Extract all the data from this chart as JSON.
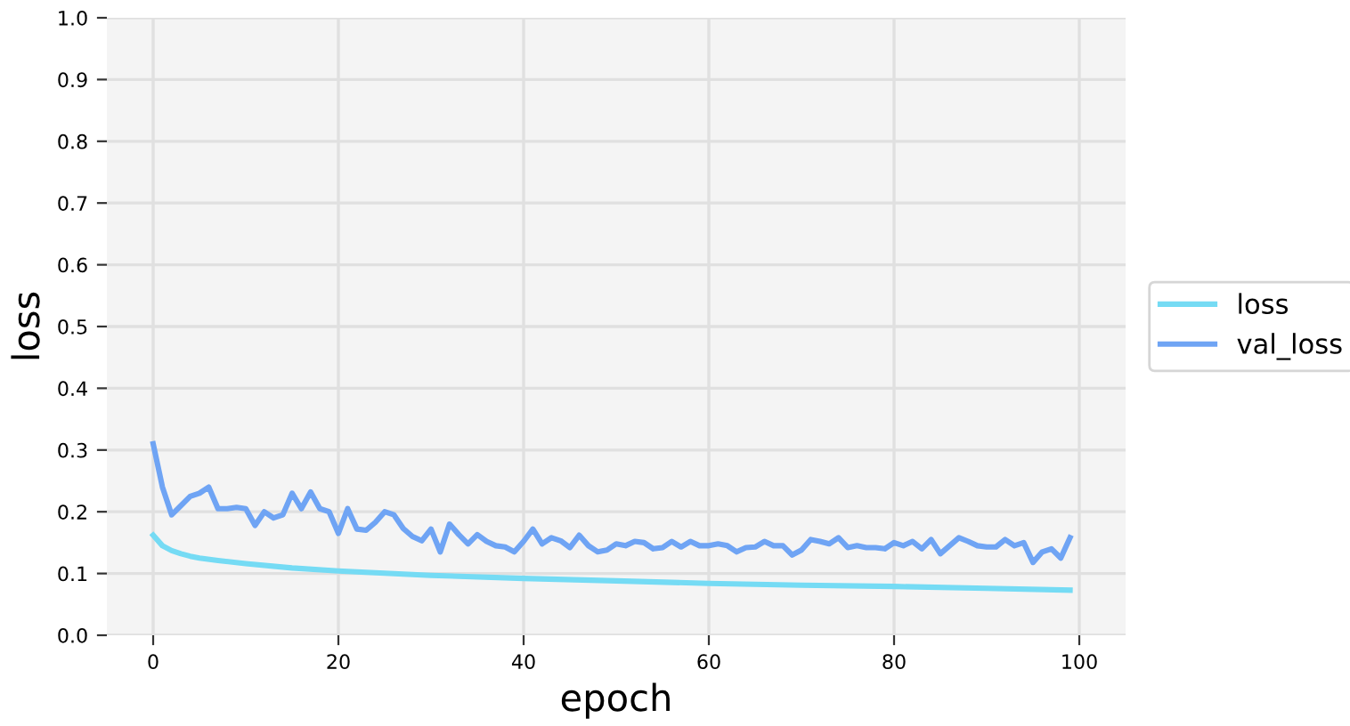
{
  "chart_data": {
    "type": "line",
    "xlabel": "epoch",
    "ylabel": "loss",
    "xlim": [
      -5,
      105
    ],
    "ylim": [
      0,
      1
    ],
    "xticks": [
      0,
      20,
      40,
      60,
      80,
      100
    ],
    "yticks": [
      {
        "value": 0,
        "label": "0.0"
      },
      0.1,
      0.2,
      0.3,
      0.4,
      0.5,
      0.6,
      0.7,
      0.8,
      0.9,
      {
        "value": 1,
        "label": "1.0"
      }
    ],
    "grid": true,
    "legend": "right",
    "line_style": "solid",
    "marker": "none",
    "series": [
      {
        "name": "loss",
        "color": "#75dbf4",
        "x": [
          0,
          1,
          2,
          3,
          4,
          5,
          7,
          10,
          15,
          20,
          30,
          40,
          50,
          60,
          70,
          80,
          90,
          99
        ],
        "values": [
          0.162,
          0.145,
          0.137,
          0.132,
          0.128,
          0.125,
          0.121,
          0.116,
          0.109,
          0.104,
          0.097,
          0.092,
          0.088,
          0.084,
          0.081,
          0.079,
          0.076,
          0.073
        ]
      },
      {
        "name": "val_loss",
        "color": "#6fa4f4",
        "x": [
          0,
          1,
          2,
          3,
          4,
          5,
          6,
          7,
          8,
          9,
          10,
          11,
          12,
          13,
          14,
          15,
          16,
          17,
          18,
          19,
          20,
          21,
          22,
          23,
          24,
          25,
          26,
          27,
          28,
          29,
          30,
          31,
          32,
          33,
          34,
          35,
          36,
          37,
          38,
          39,
          40,
          41,
          42,
          43,
          44,
          45,
          46,
          47,
          48,
          49,
          50,
          51,
          52,
          53,
          54,
          55,
          56,
          57,
          58,
          59,
          60,
          61,
          62,
          63,
          64,
          65,
          66,
          67,
          68,
          69,
          70,
          71,
          72,
          73,
          74,
          75,
          76,
          77,
          78,
          79,
          80,
          81,
          82,
          83,
          84,
          85,
          86,
          87,
          88,
          89,
          90,
          91,
          92,
          93,
          94,
          95,
          96,
          97,
          98,
          99
        ],
        "values": [
          0.31,
          0.24,
          0.195,
          0.21,
          0.225,
          0.23,
          0.24,
          0.205,
          0.205,
          0.207,
          0.205,
          0.178,
          0.2,
          0.19,
          0.195,
          0.23,
          0.205,
          0.232,
          0.205,
          0.2,
          0.165,
          0.205,
          0.172,
          0.17,
          0.183,
          0.2,
          0.195,
          0.173,
          0.16,
          0.153,
          0.172,
          0.135,
          0.18,
          0.163,
          0.148,
          0.163,
          0.152,
          0.145,
          0.143,
          0.135,
          0.152,
          0.172,
          0.148,
          0.158,
          0.153,
          0.142,
          0.162,
          0.145,
          0.135,
          0.138,
          0.148,
          0.145,
          0.152,
          0.15,
          0.14,
          0.142,
          0.152,
          0.143,
          0.152,
          0.145,
          0.145,
          0.148,
          0.145,
          0.135,
          0.142,
          0.143,
          0.152,
          0.145,
          0.145,
          0.13,
          0.138,
          0.155,
          0.152,
          0.148,
          0.158,
          0.142,
          0.145,
          0.142,
          0.142,
          0.14,
          0.15,
          0.145,
          0.152,
          0.14,
          0.155,
          0.132,
          0.145,
          0.158,
          0.152,
          0.145,
          0.143,
          0.143,
          0.155,
          0.145,
          0.15,
          0.118,
          0.135,
          0.14,
          0.125,
          0.158
        ]
      }
    ]
  }
}
